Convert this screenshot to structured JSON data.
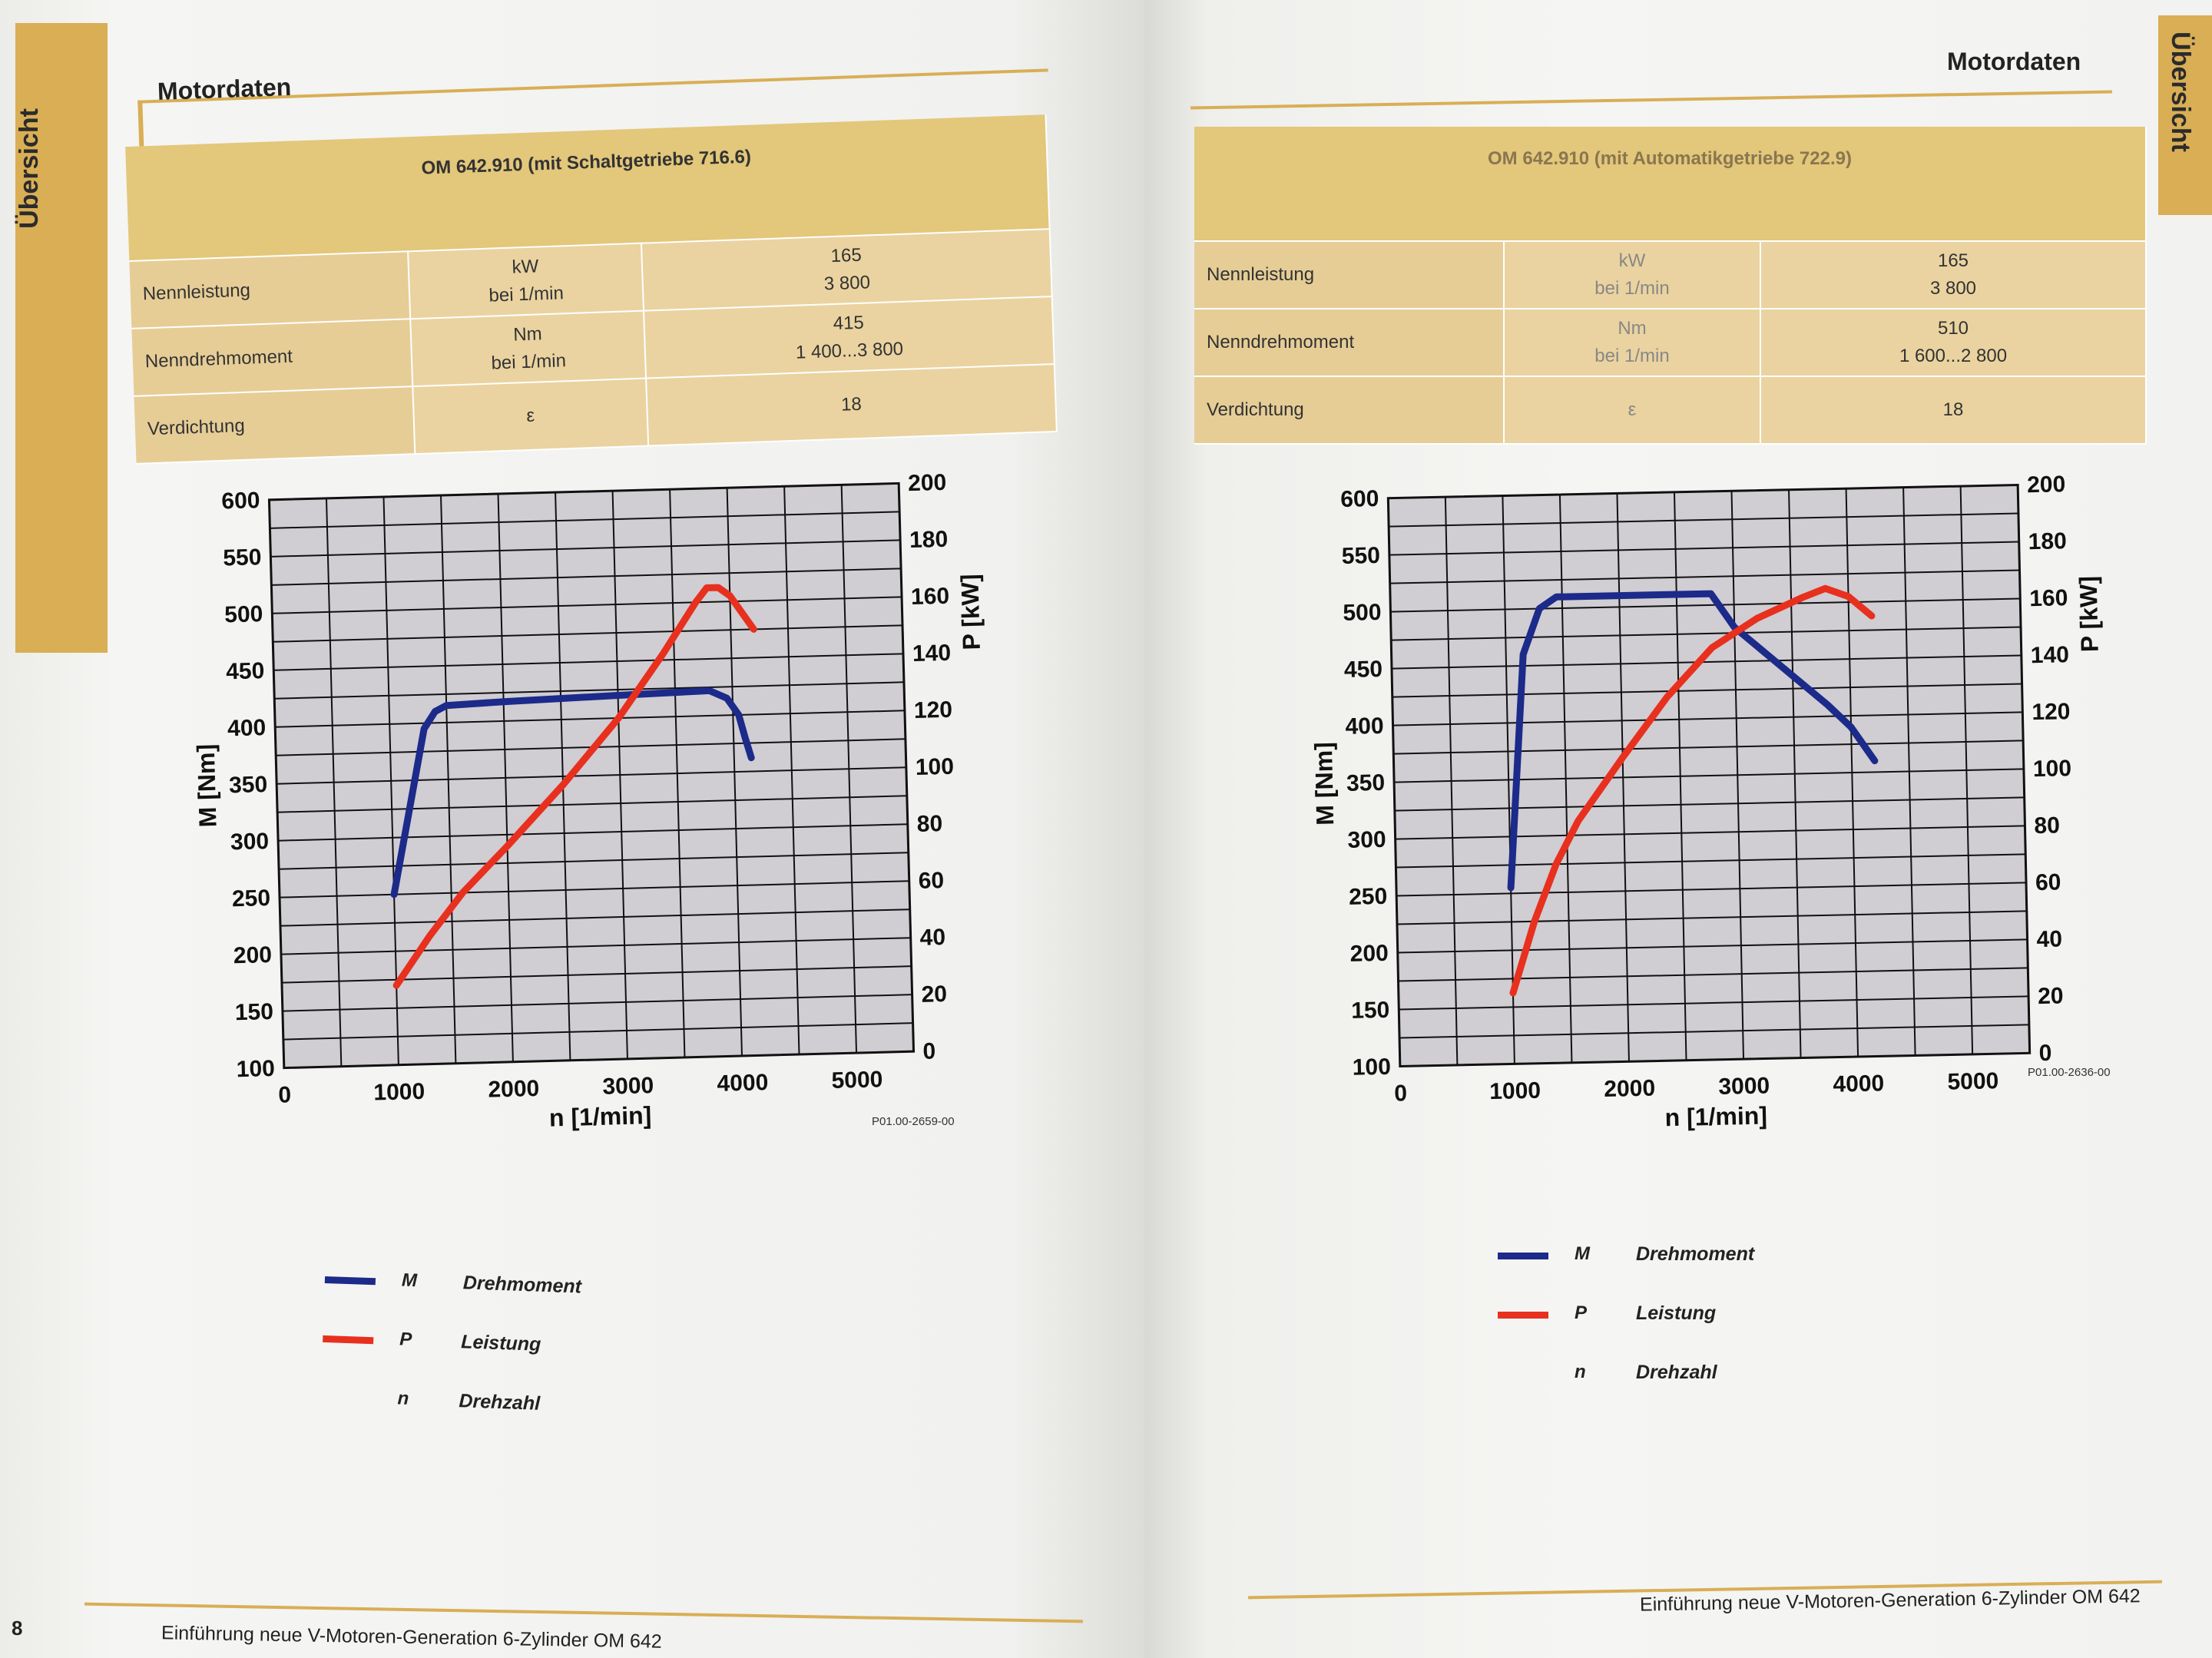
{
  "colors": {
    "gold": "#d9ae55",
    "torque": "#1c2a8a",
    "power": "#e8301e",
    "grid_fill": "#d0cdd3"
  },
  "left": {
    "side_tab": "Übersicht",
    "heading": "Motordaten",
    "table": {
      "header": "OM 642.910 (mit Schaltgetriebe 716.6)",
      "rows": [
        {
          "label": "Nennleistung",
          "unit1": "kW",
          "unit2": "bei 1/min",
          "val1": "165",
          "val2": "3 800"
        },
        {
          "label": "Nenndrehmoment",
          "unit1": "Nm",
          "unit2": "bei 1/min",
          "val1": "415",
          "val2": "1 400...3 800"
        },
        {
          "label": "Verdichtung",
          "unit1": "ε",
          "unit2": "",
          "val1": "18",
          "val2": ""
        }
      ]
    },
    "figure_code": "P01.00-2659-00",
    "legend": [
      {
        "sym": "M",
        "text": "Drehmoment",
        "color": "#1c2a8a"
      },
      {
        "sym": "P",
        "text": "Leistung",
        "color": "#e8301e"
      },
      {
        "sym": "n",
        "text": "Drehzahl",
        "color": ""
      }
    ],
    "footer": "Einführung neue V-Motoren-Generation 6-Zylinder OM 642",
    "page_number": "8"
  },
  "right": {
    "side_tab": "Übersicht",
    "heading": "Motordaten",
    "table": {
      "header": "OM 642.910 (mit Automatikgetriebe 722.9)",
      "rows": [
        {
          "label": "Nennleistung",
          "unit1": "kW",
          "unit2": "bei 1/min",
          "val1": "165",
          "val2": "3 800"
        },
        {
          "label": "Nenndrehmoment",
          "unit1": "Nm",
          "unit2": "bei 1/min",
          "val1": "510",
          "val2": "1 600...2 800"
        },
        {
          "label": "Verdichtung",
          "unit1": "ε",
          "unit2": "",
          "val1": "18",
          "val2": ""
        }
      ]
    },
    "figure_code": "P01.00-2636-00",
    "legend": [
      {
        "sym": "M",
        "text": "Drehmoment",
        "color": "#1c2a8a"
      },
      {
        "sym": "P",
        "text": "Leistung",
        "color": "#e8301e"
      },
      {
        "sym": "n",
        "text": "Drehzahl",
        "color": ""
      }
    ],
    "footer": "Einführung neue V-Motoren-Generation 6-Zylinder OM 642"
  },
  "chart_data": [
    {
      "type": "line",
      "xlabel": "n  [1/min]",
      "ylabel_left": "M [Nm]",
      "ylabel_right": "P [kW]",
      "xlim": [
        0,
        5500
      ],
      "ylim_left": [
        100,
        600
      ],
      "ylim_right": [
        0,
        200
      ],
      "x_ticks": [
        0,
        1000,
        2000,
        3000,
        4000,
        5000
      ],
      "y_ticks_left": [
        100,
        150,
        200,
        250,
        300,
        350,
        400,
        450,
        500,
        550,
        600
      ],
      "y_ticks_right": [
        0,
        20,
        40,
        60,
        80,
        100,
        120,
        140,
        160,
        180,
        200
      ],
      "grid": true,
      "series": [
        {
          "name": "M",
          "axis": "left",
          "color": "#1c2a8a",
          "x": [
            1000,
            1300,
            1400,
            1500,
            2000,
            3000,
            3800,
            3950,
            4050,
            4100,
            4150
          ],
          "y": [
            250,
            395,
            410,
            415,
            417,
            420,
            422,
            415,
            400,
            380,
            362
          ]
        },
        {
          "name": "P",
          "axis": "right",
          "color": "#e8301e",
          "x": [
            1000,
            1300,
            1600,
            2000,
            2500,
            3000,
            3400,
            3700,
            3800,
            3900,
            4000,
            4200
          ],
          "y": [
            28,
            45,
            60,
            76,
            97,
            120,
            142,
            160,
            165,
            165,
            162,
            150
          ]
        }
      ]
    },
    {
      "type": "line",
      "xlabel": "n  [1/min]",
      "ylabel_left": "M [Nm]",
      "ylabel_right": "P [kW]",
      "xlim": [
        0,
        5500
      ],
      "ylim_left": [
        100,
        600
      ],
      "ylim_right": [
        0,
        200
      ],
      "x_ticks": [
        0,
        1000,
        2000,
        3000,
        4000,
        5000
      ],
      "y_ticks_left": [
        100,
        150,
        200,
        250,
        300,
        350,
        400,
        450,
        500,
        550,
        600
      ],
      "y_ticks_right": [
        0,
        20,
        40,
        60,
        80,
        100,
        120,
        140,
        160,
        180,
        200
      ],
      "grid": true,
      "series": [
        {
          "name": "M",
          "axis": "left",
          "color": "#1c2a8a",
          "x": [
            1000,
            1150,
            1300,
            1450,
            1600,
            2000,
            2800,
            3000,
            3400,
            3800,
            4000,
            4200
          ],
          "y": [
            255,
            460,
            500,
            510,
            510,
            510,
            510,
            480,
            445,
            410,
            390,
            360
          ]
        },
        {
          "name": "P",
          "axis": "right",
          "color": "#e8301e",
          "x": [
            1000,
            1200,
            1400,
            1600,
            2000,
            2400,
            2800,
            3200,
            3600,
            3800,
            4000,
            4200
          ],
          "y": [
            25,
            50,
            70,
            85,
            107,
            128,
            145,
            155,
            162,
            165,
            162,
            155
          ]
        }
      ]
    }
  ]
}
